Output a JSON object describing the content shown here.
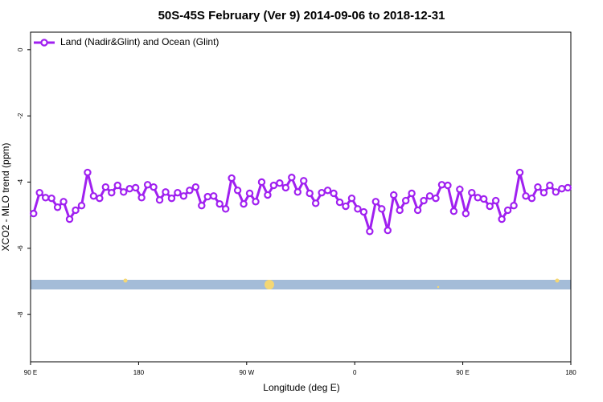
{
  "chart_data": {
    "type": "line",
    "title": "50S-45S February (Ver 9)   2014-09-06 to 2018-12-31",
    "x_label": "Longitude (deg E)",
    "y_label": "XCO2 - MLO trend (ppm)",
    "xlim": [
      90,
      540
    ],
    "ylim": [
      -9.43,
      0.53
    ],
    "xticks": [
      {
        "value": 90,
        "label": "90 E"
      },
      180,
      {
        "value": 270,
        "label": "90 W"
      },
      {
        "value": 360,
        "label": "0"
      },
      {
        "value": 450,
        "label": "90 E"
      },
      {
        "value": 540,
        "label": "180"
      }
    ],
    "yticks": [
      0,
      -2,
      -4,
      -6,
      -8
    ],
    "legend_position": "top-left",
    "x": [
      92.5,
      97.5,
      102.5,
      107.5,
      112.5,
      117.5,
      122.5,
      127.5,
      132.5,
      137.5,
      142.5,
      147.5,
      152.5,
      157.5,
      162.5,
      167.5,
      172.5,
      177.5,
      182.5,
      187.5,
      192.5,
      197.5,
      202.5,
      207.5,
      212.5,
      217.5,
      222.5,
      227.5,
      232.5,
      237.5,
      242.5,
      247.5,
      252.5,
      257.5,
      262.5,
      267.5,
      272.5,
      277.5,
      282.5,
      287.5,
      292.5,
      297.5,
      302.5,
      307.5,
      312.5,
      317.5,
      322.5,
      327.5,
      332.5,
      337.5,
      342.5,
      347.5,
      352.5,
      357.5,
      362.5,
      367.5,
      372.5,
      377.5,
      382.5,
      387.5,
      392.5,
      397.5,
      402.5,
      407.5,
      412.5,
      417.5,
      422.5,
      427.5,
      432.5,
      437.5,
      442.5,
      447.5,
      452.5,
      457.5,
      462.5,
      467.5,
      472.5,
      477.5,
      482.5,
      487.5,
      492.5,
      497.5,
      502.5,
      507.5,
      512.5,
      517.5,
      522.5,
      527.5,
      532.5,
      537.5
    ],
    "series": [
      {
        "name": "Land (Nadir&Glint) and Ocean (Glint)",
        "color": "#a020f0",
        "values": [
          -4.95,
          -4.32,
          -4.47,
          -4.49,
          -4.76,
          -4.59,
          -5.12,
          -4.85,
          -4.71,
          -3.71,
          -4.42,
          -4.49,
          -4.15,
          -4.32,
          -4.1,
          -4.3,
          -4.2,
          -4.17,
          -4.47,
          -4.08,
          -4.15,
          -4.54,
          -4.3,
          -4.49,
          -4.32,
          -4.42,
          -4.25,
          -4.15,
          -4.71,
          -4.44,
          -4.42,
          -4.66,
          -4.81,
          -3.88,
          -4.25,
          -4.66,
          -4.34,
          -4.59,
          -4.0,
          -4.39,
          -4.1,
          -4.03,
          -4.17,
          -3.86,
          -4.3,
          -3.96,
          -4.34,
          -4.64,
          -4.32,
          -4.25,
          -4.34,
          -4.61,
          -4.73,
          -4.49,
          -4.81,
          -4.9,
          -5.49,
          -4.59,
          -4.81,
          -5.46,
          -4.39,
          -4.85,
          -4.56,
          -4.34,
          -4.85,
          -4.56,
          -4.42,
          -4.49,
          -4.08,
          -4.1,
          -4.88,
          -4.22,
          -4.95,
          -4.32,
          -4.47,
          -4.51,
          -4.73,
          -4.56,
          -5.12,
          -4.85,
          -4.71,
          -3.71,
          -4.42,
          -4.49,
          -4.15,
          -4.32,
          -4.1,
          -4.3,
          -4.2,
          -4.17
        ]
      }
    ]
  }
}
